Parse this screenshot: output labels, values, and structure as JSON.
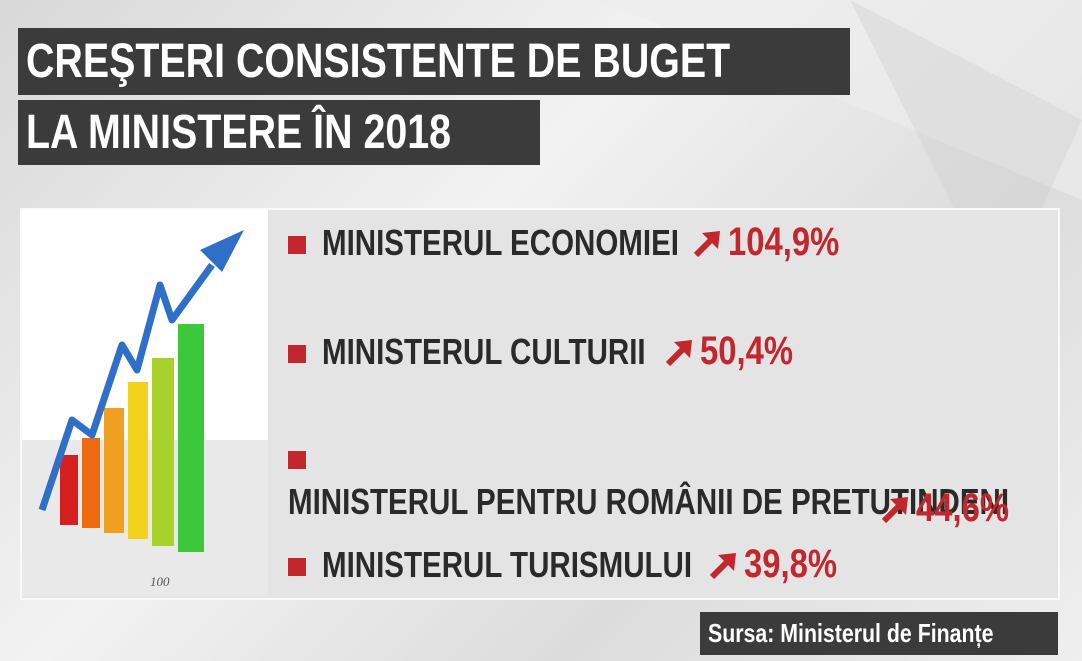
{
  "header": {
    "lines": [
      "CREŞTERI CONSISTENTE DE BUGET",
      "LA MINISTERE ÎN 2018"
    ]
  },
  "image_label": "100",
  "items": [
    {
      "name": "MINISTERUL ECONOMIEI",
      "value": "104,9%"
    },
    {
      "name": "MINISTERUL CULTURII",
      "value": "50,4%"
    },
    {
      "name": "MINISTERUL PENTRU ROMÂNII DE PRETUTINDENI",
      "value": "44,6%"
    },
    {
      "name": "MINISTERUL TURISMULUI",
      "value": "39,8%"
    }
  ],
  "source": "Sursa: Ministerul de Finanțe"
}
